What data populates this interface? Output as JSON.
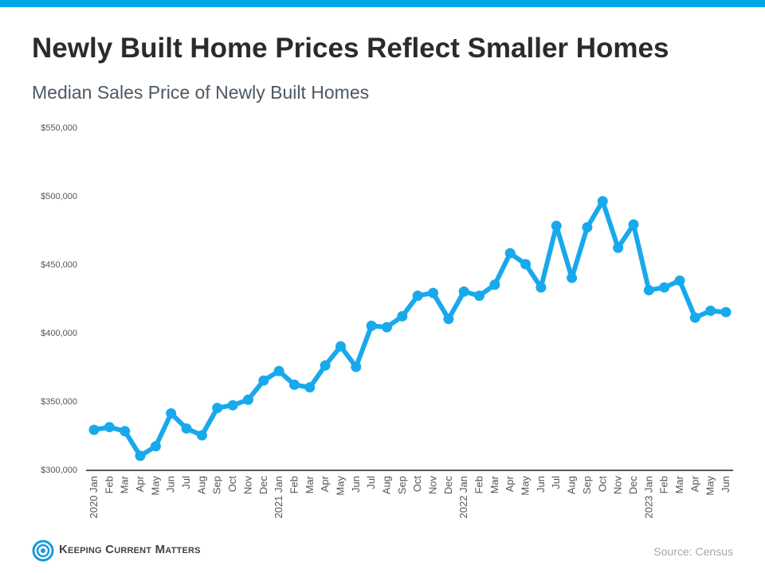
{
  "header": {
    "title": "Newly Built Home Prices Reflect Smaller Homes",
    "subtitle": "Median Sales Price of Newly Built Homes"
  },
  "footer": {
    "logo_text": "Keeping Current Matters",
    "source": "Source: Census"
  },
  "colors": {
    "accent": "#00a6e8",
    "line": "#18a9ec",
    "axis_text": "#555555",
    "title": "#2b2b2b"
  },
  "chart_data": {
    "type": "line",
    "title": "Median Sales Price of Newly Built Homes",
    "xlabel": "",
    "ylabel": "",
    "ylim": [
      300000,
      550000
    ],
    "yticks": [
      300000,
      350000,
      400000,
      450000,
      500000,
      550000
    ],
    "ytick_labels": [
      "$300,000",
      "$350,000",
      "$400,000",
      "$450,000",
      "$500,000",
      "$550,000"
    ],
    "grid": false,
    "legend": "none",
    "x": [
      "2020 Jan",
      "Feb",
      "Mar",
      "Apr",
      "May",
      "Jun",
      "Jul",
      "Aug",
      "Sep",
      "Oct",
      "Nov",
      "Dec",
      "2021 Jan",
      "Feb",
      "Mar",
      "Apr",
      "May",
      "Jun",
      "Jul",
      "Aug",
      "Sep",
      "Oct",
      "Nov",
      "Dec",
      "2022 Jan",
      "Feb",
      "Mar",
      "Apr",
      "May",
      "Jun",
      "Jul",
      "Aug",
      "Sep",
      "Oct",
      "Nov",
      "Dec",
      "2023 Jan",
      "Feb",
      "Mar",
      "Apr",
      "May",
      "Jun"
    ],
    "series": [
      {
        "name": "",
        "values": [
          329000,
          331000,
          328000,
          310000,
          317000,
          341000,
          330000,
          325000,
          345000,
          347000,
          351000,
          365000,
          372000,
          362000,
          360000,
          376000,
          390000,
          375000,
          405000,
          404000,
          412000,
          427000,
          429000,
          410000,
          430000,
          427000,
          435000,
          458000,
          450000,
          433000,
          478000,
          440000,
          477000,
          496000,
          462000,
          479000,
          431000,
          433000,
          438000,
          411000,
          416000,
          415000
        ]
      }
    ]
  }
}
